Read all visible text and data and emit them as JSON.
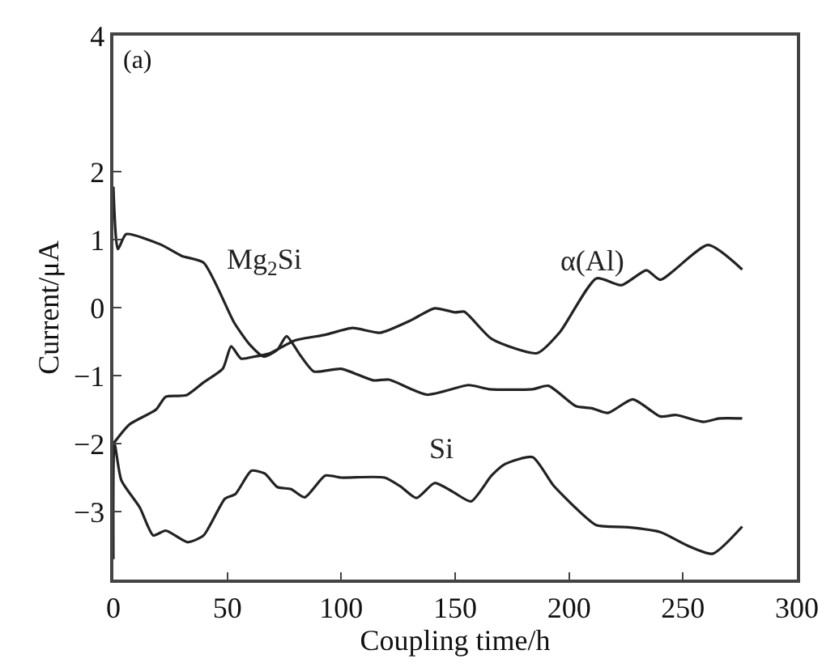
{
  "chart_data": {
    "type": "line",
    "xlabel": "Coupling time/h",
    "ylabel": "Current/μA",
    "xlim": [
      0,
      300
    ],
    "xticks": [
      0,
      50,
      100,
      150,
      200,
      250,
      300
    ],
    "ylim": [
      -4,
      4
    ],
    "yticks": [
      -3,
      -2,
      -1,
      0,
      1,
      2,
      4
    ],
    "marker": "none",
    "line_style": "solid",
    "series": [
      {
        "name": "Mg$_{2}$Si",
        "color": "#222222",
        "x": [
          0,
          2,
          5.6,
          20.6,
          30,
          39.6,
          53,
          60,
          66,
          72,
          76,
          82,
          88,
          100,
          114,
          121,
          137.5,
          156,
          165,
          184,
          191,
          203,
          210,
          217,
          228,
          240,
          247,
          259,
          266,
          276
        ],
        "values": [
          1.78,
          0.86,
          1.08,
          0.93,
          0.76,
          0.66,
          -0.22,
          -0.55,
          -0.72,
          -0.62,
          -0.42,
          -0.7,
          -0.94,
          -0.9,
          -1.07,
          -1.06,
          -1.28,
          -1.14,
          -1.2,
          -1.2,
          -1.15,
          -1.45,
          -1.48,
          -1.55,
          -1.35,
          -1.6,
          -1.58,
          -1.68,
          -1.63,
          -1.63
        ]
      },
      {
        "name": "α(Al)",
        "color": "#222222",
        "x": [
          0,
          7,
          18.7,
          23,
          32,
          39.6,
          48,
          51.7,
          56,
          62,
          68,
          80,
          93,
          105,
          117,
          131,
          141,
          150,
          154,
          166,
          186,
          196,
          212,
          223,
          234,
          240,
          261,
          276
        ],
        "values": [
          -2,
          -1.72,
          -1.5,
          -1.31,
          -1.29,
          -1.1,
          -0.9,
          -0.57,
          -0.75,
          -0.72,
          -0.68,
          -0.48,
          -0.4,
          -0.3,
          -0.37,
          -0.18,
          -0.01,
          -0.07,
          -0.06,
          -0.46,
          -0.67,
          -0.36,
          0.43,
          0.33,
          0.55,
          0.41,
          0.92,
          0.56
        ]
      },
      {
        "name": "Si",
        "color": "#222222",
        "x": [
          0,
          0.5,
          3.5,
          11.6,
          17.5,
          23,
          32.6,
          39.6,
          49,
          53.6,
          60.6,
          66.4,
          72,
          78,
          84,
          93,
          100,
          119,
          126,
          133,
          141,
          149,
          157,
          166,
          172,
          184,
          193,
          203,
          212,
          226,
          240,
          252,
          263,
          276
        ],
        "values": [
          -3.7,
          -2,
          -2.54,
          -2.94,
          -3.35,
          -3.28,
          -3.45,
          -3.35,
          -2.81,
          -2.74,
          -2.4,
          -2.44,
          -2.64,
          -2.67,
          -2.79,
          -2.47,
          -2.5,
          -2.5,
          -2.63,
          -2.8,
          -2.58,
          -2.71,
          -2.85,
          -2.47,
          -2.3,
          -2.2,
          -2.61,
          -2.95,
          -3.2,
          -3.23,
          -3.3,
          -3.5,
          -3.62,
          -3.22
        ]
      }
    ],
    "annotations": [
      "(a)"
    ]
  }
}
